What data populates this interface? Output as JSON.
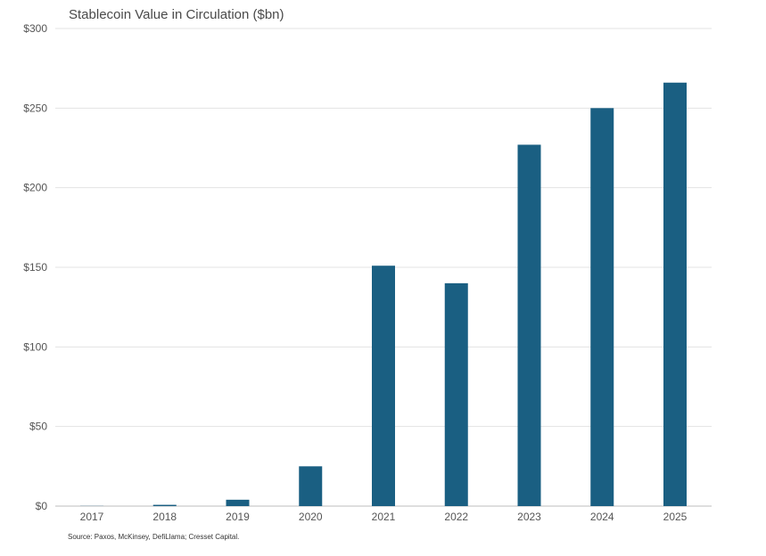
{
  "chart_data": {
    "type": "bar",
    "title": "Stablecoin Value in Circulation ($bn)",
    "categories": [
      "2017",
      "2018",
      "2019",
      "2020",
      "2021",
      "2022",
      "2023",
      "2024",
      "2025"
    ],
    "values": [
      0.1,
      0.8,
      4,
      25,
      151,
      140,
      227,
      250,
      266
    ],
    "ylim": [
      0,
      300
    ],
    "yticks": [
      0,
      50,
      100,
      150,
      200,
      250,
      300
    ],
    "ytick_labels": [
      "$0",
      "$50",
      "$100",
      "$150",
      "$200",
      "$250",
      "$300"
    ],
    "xlabel": "",
    "ylabel": "",
    "grid": true,
    "bar_color": "#1a5f82",
    "grid_color": "#e3e3e3",
    "source": "Source: Paxos, McKinsey, DefiLlama; Cresset Capital."
  }
}
